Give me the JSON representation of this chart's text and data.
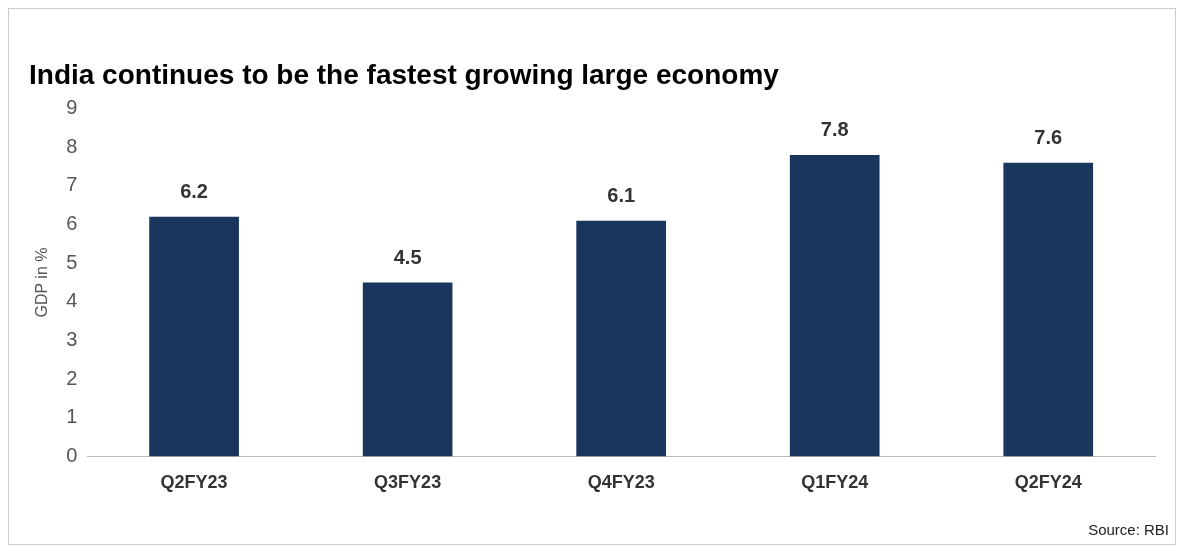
{
  "chart_data": {
    "type": "bar",
    "title": "India continues to be the fastest growing large economy",
    "ylabel": "GDP in %",
    "categories": [
      "Q2FY23",
      "Q3FY23",
      "Q4FY23",
      "Q1FY24",
      "Q2FY24"
    ],
    "values": [
      6.2,
      4.5,
      6.1,
      7.8,
      7.6
    ],
    "color": "#1b365d",
    "ylim": [
      0,
      9
    ],
    "yticks": [
      0,
      1,
      2,
      3,
      4,
      5,
      6,
      7,
      8,
      9
    ],
    "grid": false,
    "legend": false,
    "data_labels": true,
    "annotations": [
      "Source: RBI"
    ]
  }
}
